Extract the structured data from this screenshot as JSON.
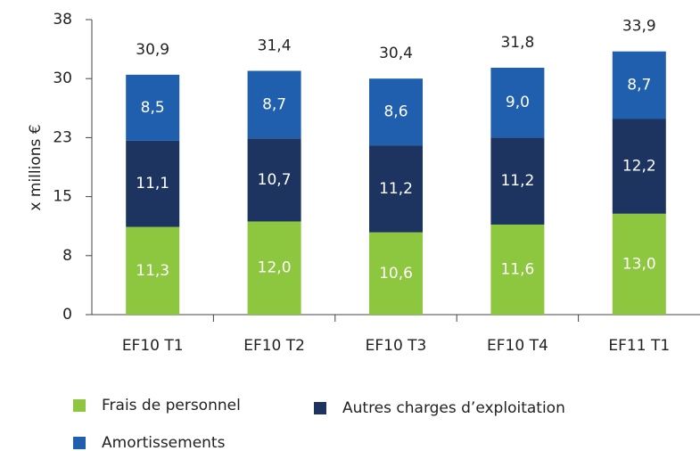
{
  "chart_data": {
    "type": "stacked_bar",
    "y_label": "x millions €",
    "categories": [
      "EF10 T1",
      "EF10 T2",
      "EF10 T3",
      "EF10 T4",
      "EF11 T1"
    ],
    "series": [
      {
        "name": "Frais de personnel",
        "color": "#8dc63f",
        "values": [
          11.3,
          12.0,
          10.6,
          11.6,
          13.0
        ],
        "value_labels": [
          "11,3",
          "12,0",
          "10,6",
          "11,6",
          "13,0"
        ]
      },
      {
        "name": "Autres charges d’exploitation",
        "color": "#1d3461",
        "values": [
          11.1,
          10.7,
          11.2,
          11.2,
          12.2
        ],
        "value_labels": [
          "11,1",
          "10,7",
          "11,2",
          "11,2",
          "12,2"
        ]
      },
      {
        "name": "Amortissements",
        "color": "#1f5fae",
        "values": [
          8.5,
          8.7,
          8.6,
          9.0,
          8.7
        ],
        "value_labels": [
          "8,5",
          "8,7",
          "8,6",
          "9,0",
          "8,7"
        ]
      }
    ],
    "totals": [
      30.9,
      31.4,
      30.4,
      31.8,
      33.9
    ],
    "total_labels": [
      "30,9",
      "31,4",
      "30,4",
      "31,8",
      "33,9"
    ],
    "ylim": [
      0,
      38
    ],
    "yticks": [
      0,
      {
        "value": 7.6,
        "label": "8"
      },
      {
        "value": 15.2,
        "label": "15"
      },
      {
        "value": 22.8,
        "label": "23"
      },
      {
        "value": 30.4,
        "label": "30"
      },
      38
    ]
  }
}
